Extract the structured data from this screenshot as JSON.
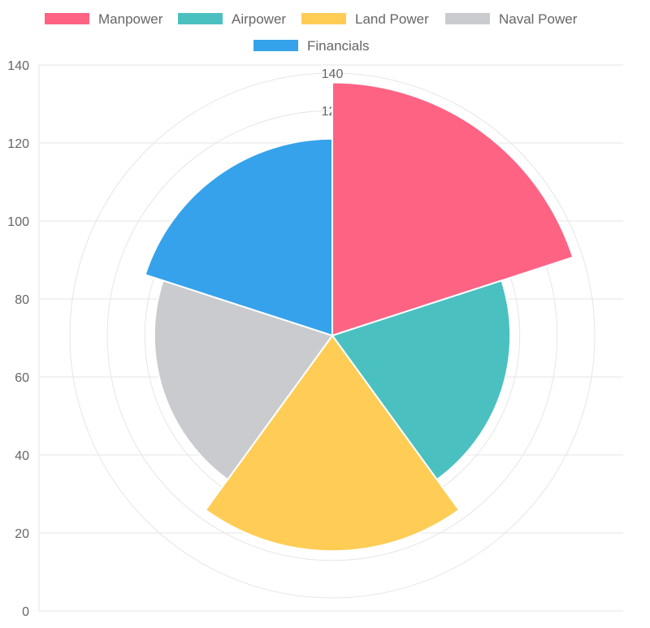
{
  "chart_data": {
    "type": "polarArea",
    "title": "",
    "categories": [
      "Manpower",
      "Airpower",
      "Land Power",
      "Naval Power",
      "Financials"
    ],
    "values": [
      135,
      95,
      115,
      95,
      105
    ],
    "colors": [
      "#ff6384",
      "#4bc0c0",
      "#ffcd56",
      "#c9cbcf",
      "#36a2eb"
    ],
    "legend_position": "top",
    "y_axis": {
      "min": 0,
      "max": 140,
      "ticks": [
        "0",
        "20",
        "40",
        "60",
        "80",
        "100",
        "120",
        "140"
      ]
    },
    "radial_axis": {
      "min": 0,
      "max": 140,
      "visible_tick_labels": [
        "140",
        "120"
      ]
    },
    "grid": true
  }
}
